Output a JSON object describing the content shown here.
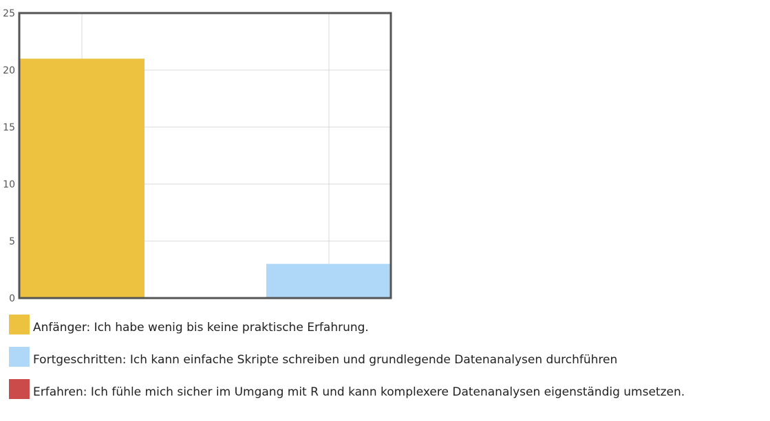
{
  "chart_data": {
    "type": "bar",
    "categories": [
      "Anfänger: Ich habe wenig bis keine praktische Erfahrung.",
      "Fortgeschritten: Ich kann einfache Skripte schreiben und grundlegende Datenanalysen durchführen",
      "Erfahren: Ich fühle mich sicher im Umgang mit R und kann komplexere Datenanalysen eigenständig umsetzen."
    ],
    "values": [
      21,
      3,
      0
    ],
    "colors": [
      "#edc240",
      "#afd8f8",
      "#cb4b4b"
    ],
    "ylim": [
      0,
      25
    ],
    "yticks": [
      "0",
      "5",
      "10",
      "15",
      "20",
      "25"
    ],
    "grid": true,
    "legend_position": "bottom"
  }
}
